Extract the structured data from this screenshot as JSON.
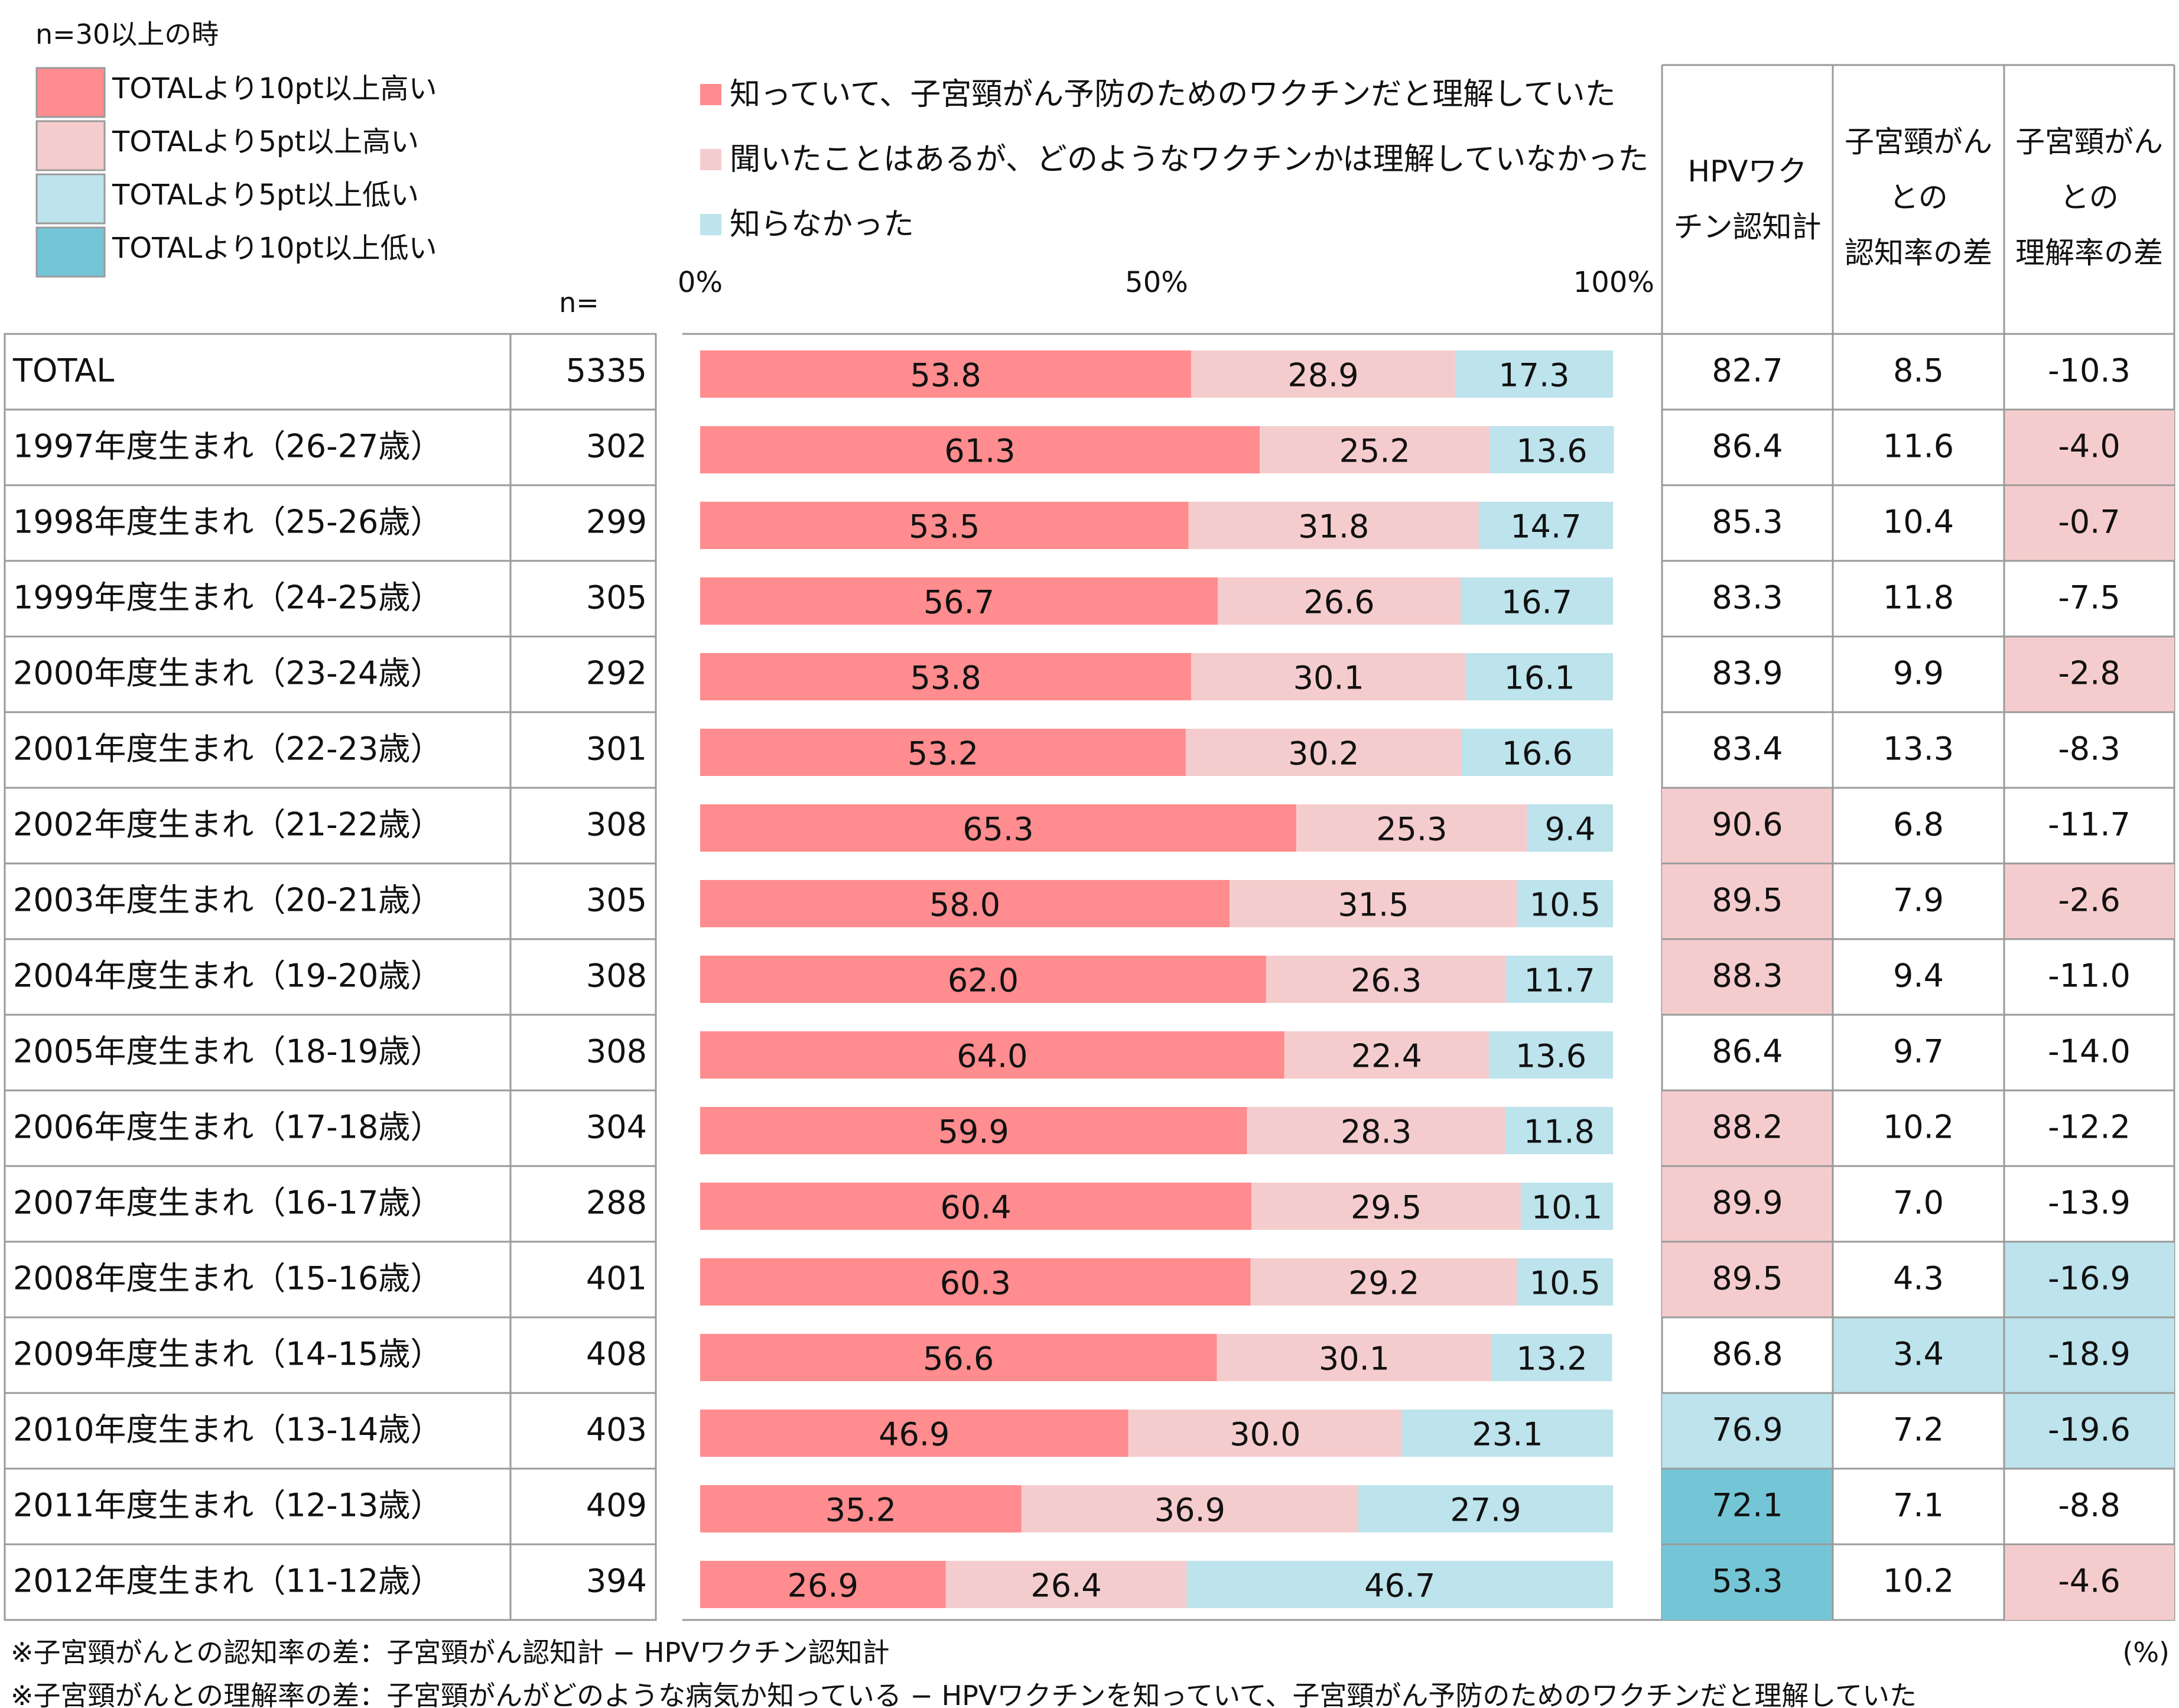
{
  "legend_note": "n=30以上の時",
  "highlight_legend": [
    {
      "label": "TOTALより10pt以上高い",
      "color": "#ff8c8e"
    },
    {
      "label": "TOTALより5pt以上高い",
      "color": "#f5cccd"
    },
    {
      "label": "TOTALより5pt以上低い",
      "color": "#bde3ec"
    },
    {
      "label": "TOTALより10pt以上低い",
      "color": "#74c6d6"
    }
  ],
  "n_label": "n=",
  "unit_label": "(%)",
  "footnotes": [
    "※子宮頸がんとの認知率の差：子宮頸がん認知計 − HPVワクチン認知計",
    "※子宮頸がんとの理解率の差：子宮頸がんがどのような病気か知っている − HPVワクチンを知っていて、子宮頸がん予防のためのワクチンだと理解していた"
  ],
  "columns": {
    "col1": [
      "HPVワク",
      "チン認知計"
    ],
    "col2": [
      "子宮頸がん",
      "との",
      "認知率の差"
    ],
    "col3": [
      "子宮頸がん",
      "との",
      "理解率の差"
    ]
  },
  "chart_data": {
    "type": "bar",
    "stacked": true,
    "orientation": "horizontal",
    "xlim": [
      0,
      100
    ],
    "ticks": [
      "0%",
      "50%",
      "100%"
    ],
    "series": [
      {
        "name": "知っていて、子宮頸がん予防のためのワクチンだと理解していた",
        "color": "#ff8c8e",
        "values": [
          53.8,
          61.3,
          53.5,
          56.7,
          53.8,
          53.2,
          65.3,
          58.0,
          62.0,
          64.0,
          59.9,
          60.4,
          60.3,
          56.6,
          46.9,
          35.2,
          26.9
        ]
      },
      {
        "name": "聞いたことはあるが、どのようなワクチンかは理解していなかった",
        "color": "#f5cccd",
        "values": [
          28.9,
          25.2,
          31.8,
          26.6,
          30.1,
          30.2,
          25.3,
          31.5,
          26.3,
          22.4,
          28.3,
          29.5,
          29.2,
          30.1,
          30.0,
          36.9,
          26.4
        ]
      },
      {
        "name": "知らなかった",
        "color": "#bde3ec",
        "values": [
          17.3,
          13.6,
          14.7,
          16.7,
          16.1,
          16.6,
          9.4,
          10.5,
          11.7,
          13.6,
          11.8,
          10.1,
          10.5,
          13.2,
          23.1,
          27.9,
          46.7
        ]
      }
    ],
    "rows": [
      {
        "label": "TOTAL",
        "n": "5335",
        "c1": "82.7",
        "c2": "8.5",
        "c3": "-10.3",
        "h1": "",
        "h2": "",
        "h3": ""
      },
      {
        "label": "1997年度生まれ（26-27歳）",
        "n": "302",
        "c1": "86.4",
        "c2": "11.6",
        "c3": "-4.0",
        "h1": "",
        "h2": "",
        "h3": "high5"
      },
      {
        "label": "1998年度生まれ（25-26歳）",
        "n": "299",
        "c1": "85.3",
        "c2": "10.4",
        "c3": "-0.7",
        "h1": "",
        "h2": "",
        "h3": "high5"
      },
      {
        "label": "1999年度生まれ（24-25歳）",
        "n": "305",
        "c1": "83.3",
        "c2": "11.8",
        "c3": "-7.5",
        "h1": "",
        "h2": "",
        "h3": ""
      },
      {
        "label": "2000年度生まれ（23-24歳）",
        "n": "292",
        "c1": "83.9",
        "c2": "9.9",
        "c3": "-2.8",
        "h1": "",
        "h2": "",
        "h3": "high5"
      },
      {
        "label": "2001年度生まれ（22-23歳）",
        "n": "301",
        "c1": "83.4",
        "c2": "13.3",
        "c3": "-8.3",
        "h1": "",
        "h2": "",
        "h3": ""
      },
      {
        "label": "2002年度生まれ（21-22歳）",
        "n": "308",
        "c1": "90.6",
        "c2": "6.8",
        "c3": "-11.7",
        "h1": "high5",
        "h2": "",
        "h3": ""
      },
      {
        "label": "2003年度生まれ（20-21歳）",
        "n": "305",
        "c1": "89.5",
        "c2": "7.9",
        "c3": "-2.6",
        "h1": "high5",
        "h2": "",
        "h3": "high5"
      },
      {
        "label": "2004年度生まれ（19-20歳）",
        "n": "308",
        "c1": "88.3",
        "c2": "9.4",
        "c3": "-11.0",
        "h1": "high5",
        "h2": "",
        "h3": ""
      },
      {
        "label": "2005年度生まれ（18-19歳）",
        "n": "308",
        "c1": "86.4",
        "c2": "9.7",
        "c3": "-14.0",
        "h1": "",
        "h2": "",
        "h3": ""
      },
      {
        "label": "2006年度生まれ（17-18歳）",
        "n": "304",
        "c1": "88.2",
        "c2": "10.2",
        "c3": "-12.2",
        "h1": "high5",
        "h2": "",
        "h3": ""
      },
      {
        "label": "2007年度生まれ（16-17歳）",
        "n": "288",
        "c1": "89.9",
        "c2": "7.0",
        "c3": "-13.9",
        "h1": "high5",
        "h2": "",
        "h3": ""
      },
      {
        "label": "2008年度生まれ（15-16歳）",
        "n": "401",
        "c1": "89.5",
        "c2": "4.3",
        "c3": "-16.9",
        "h1": "high5",
        "h2": "",
        "h3": "low5"
      },
      {
        "label": "2009年度生まれ（14-15歳）",
        "n": "408",
        "c1": "86.8",
        "c2": "3.4",
        "c3": "-18.9",
        "h1": "",
        "h2": "low5",
        "h3": "low5"
      },
      {
        "label": "2010年度生まれ（13-14歳）",
        "n": "403",
        "c1": "76.9",
        "c2": "7.2",
        "c3": "-19.6",
        "h1": "low5",
        "h2": "",
        "h3": "low5"
      },
      {
        "label": "2011年度生まれ（12-13歳）",
        "n": "409",
        "c1": "72.1",
        "c2": "7.1",
        "c3": "-8.8",
        "h1": "low10",
        "h2": "",
        "h3": ""
      },
      {
        "label": "2012年度生まれ（11-12歳）",
        "n": "394",
        "c1": "53.3",
        "c2": "10.2",
        "c3": "-4.6",
        "h1": "low10",
        "h2": "",
        "h3": "high5"
      }
    ]
  }
}
